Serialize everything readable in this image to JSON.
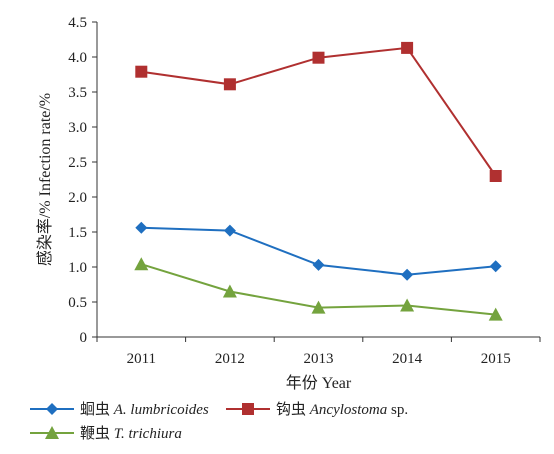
{
  "chart_data": {
    "type": "line",
    "title": "",
    "xlabel": "年份 Year",
    "ylabel": "感染率/% Infection rate/%",
    "x": [
      "2011",
      "2012",
      "2013",
      "2014",
      "2015"
    ],
    "ylim": [
      0,
      4.5
    ],
    "yticks": [
      "0",
      "0.5",
      "1.0",
      "1.5",
      "2.0",
      "2.5",
      "3.0",
      "3.5",
      "4.0",
      "4.5"
    ],
    "grid": false,
    "legend_position": "bottom",
    "series": [
      {
        "name_cn": "蛔虫",
        "name_latin": "A. lumbricoides",
        "name_suffix": "",
        "color": "#1f6fc0",
        "marker": "diamond",
        "values": [
          1.56,
          1.52,
          1.03,
          0.89,
          1.01
        ]
      },
      {
        "name_cn": "钩虫",
        "name_latin": "Ancylostoma",
        "name_suffix": " sp.",
        "color": "#b03030",
        "marker": "square",
        "values": [
          3.79,
          3.61,
          3.99,
          4.13,
          2.3
        ]
      },
      {
        "name_cn": "鞭虫",
        "name_latin": "T. trichiura",
        "name_suffix": "",
        "color": "#74a33e",
        "marker": "triangle",
        "values": [
          1.04,
          0.65,
          0.42,
          0.45,
          0.32
        ]
      }
    ]
  }
}
